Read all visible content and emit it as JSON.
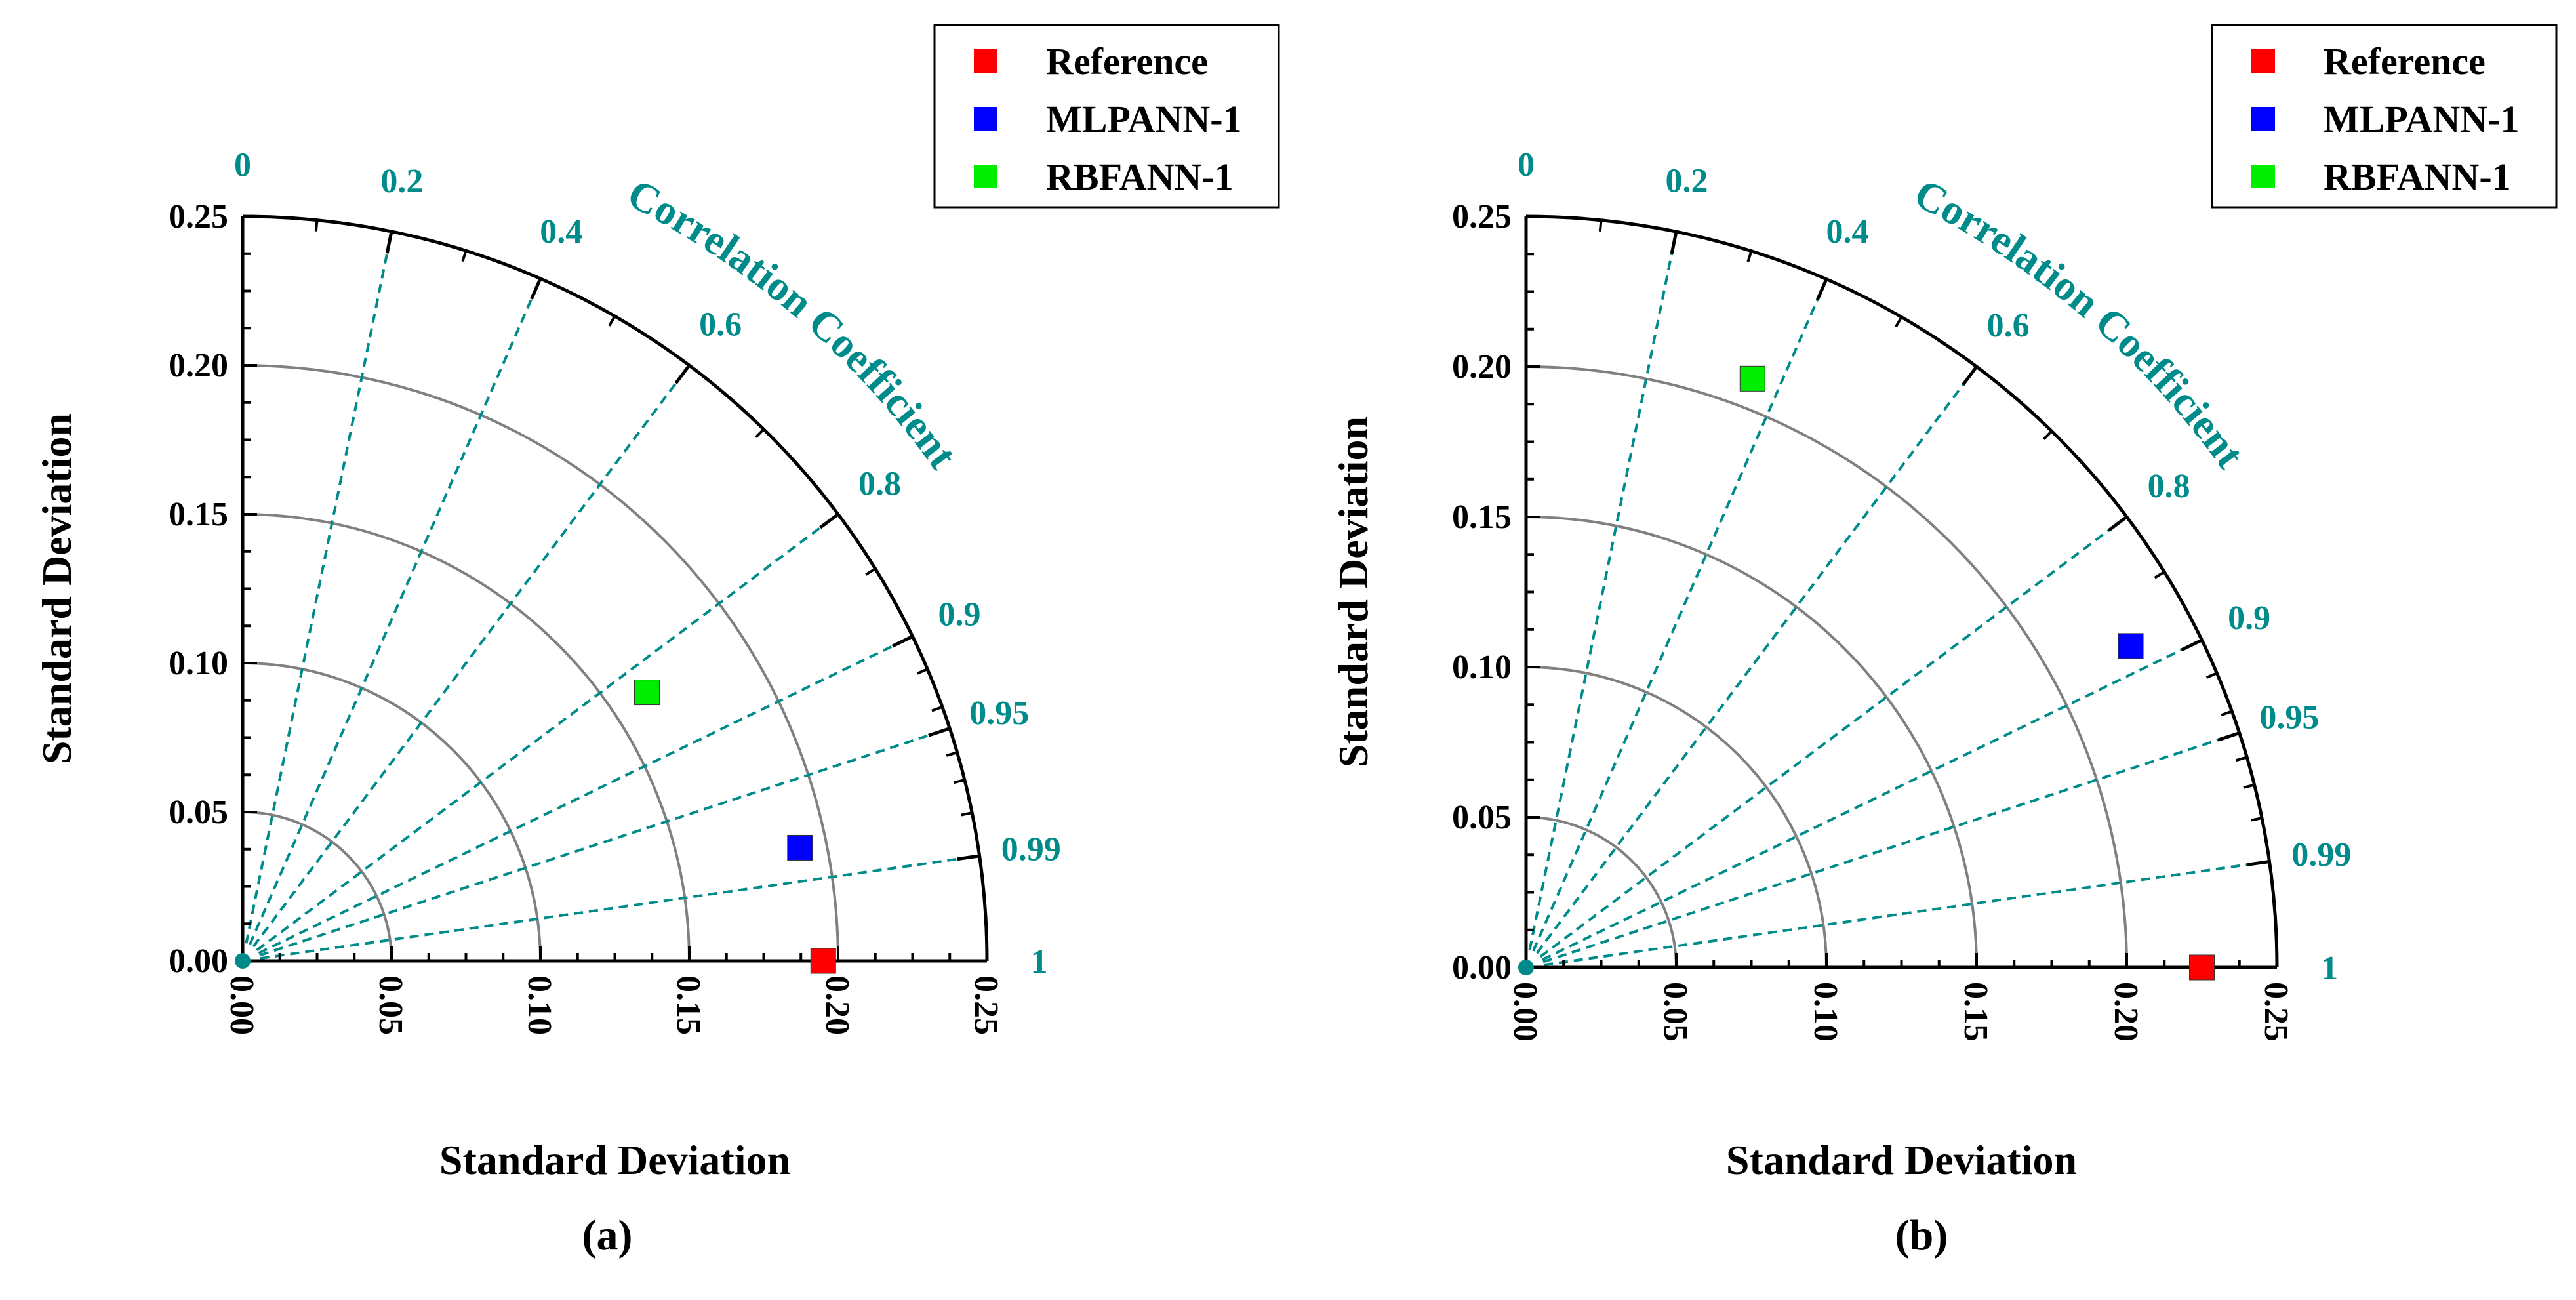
{
  "chart_data": [
    {
      "type": "taylor",
      "panel_label": "(a)",
      "xlabel": "Standard Deviation",
      "ylabel": "Standard Deviation",
      "corr_label": "Correlation Coefficient",
      "std_range": [
        0,
        0.25
      ],
      "std_ticks": [
        "0.00",
        "0.05",
        "0.10",
        "0.15",
        "0.20",
        "0.25"
      ],
      "std_tick_values": [
        0,
        0.05,
        0.1,
        0.15,
        0.2,
        0.25
      ],
      "std_arcs": [
        0.05,
        0.1,
        0.15,
        0.2
      ],
      "corr_ticks": [
        "0",
        "0.2",
        "0.4",
        "0.6",
        "0.8",
        "0.9",
        "0.95",
        "0.99",
        "1"
      ],
      "corr_values": [
        0,
        0.2,
        0.4,
        0.6,
        0.8,
        0.9,
        0.95,
        0.99,
        1
      ],
      "legend": [
        "Reference",
        "MLPANN-1",
        "RBFANN-1"
      ],
      "points": [
        {
          "name": "Reference",
          "std": 0.195,
          "corr": 1.0,
          "color": "#ff0000"
        },
        {
          "name": "MLPANN-1",
          "std": 0.191,
          "corr": 0.98,
          "color": "#0000ff"
        },
        {
          "name": "RBFANN-1",
          "std": 0.163,
          "corr": 0.833,
          "color": "#00ee00"
        }
      ]
    },
    {
      "type": "taylor",
      "panel_label": "(b)",
      "xlabel": "Standard Deviation",
      "ylabel": "Standard Deviation",
      "corr_label": "Correlation Coefficient",
      "std_range": [
        0,
        0.25
      ],
      "std_ticks": [
        "0.00",
        "0.05",
        "0.10",
        "0.15",
        "0.20",
        "0.25"
      ],
      "std_tick_values": [
        0,
        0.05,
        0.1,
        0.15,
        0.2,
        0.25
      ],
      "std_arcs": [
        0.05,
        0.1,
        0.15,
        0.2
      ],
      "corr_ticks": [
        "0",
        "0.2",
        "0.4",
        "0.6",
        "0.8",
        "0.9",
        "0.95",
        "0.99",
        "1"
      ],
      "corr_values": [
        0,
        0.2,
        0.4,
        0.6,
        0.8,
        0.9,
        0.95,
        0.99,
        1
      ],
      "legend": [
        "Reference",
        "MLPANN-1",
        "RBFANN-1"
      ],
      "points": [
        {
          "name": "Reference",
          "std": 0.225,
          "corr": 1.0,
          "color": "#ff0000"
        },
        {
          "name": "MLPANN-1",
          "std": 0.228,
          "corr": 0.883,
          "color": "#0000ff"
        },
        {
          "name": "RBFANN-1",
          "std": 0.21,
          "corr": 0.359,
          "color": "#00ee00"
        }
      ]
    }
  ],
  "colors": {
    "axis": "#000000",
    "arc": "#808080",
    "corr": "#008b8b",
    "frame": "#000000"
  }
}
